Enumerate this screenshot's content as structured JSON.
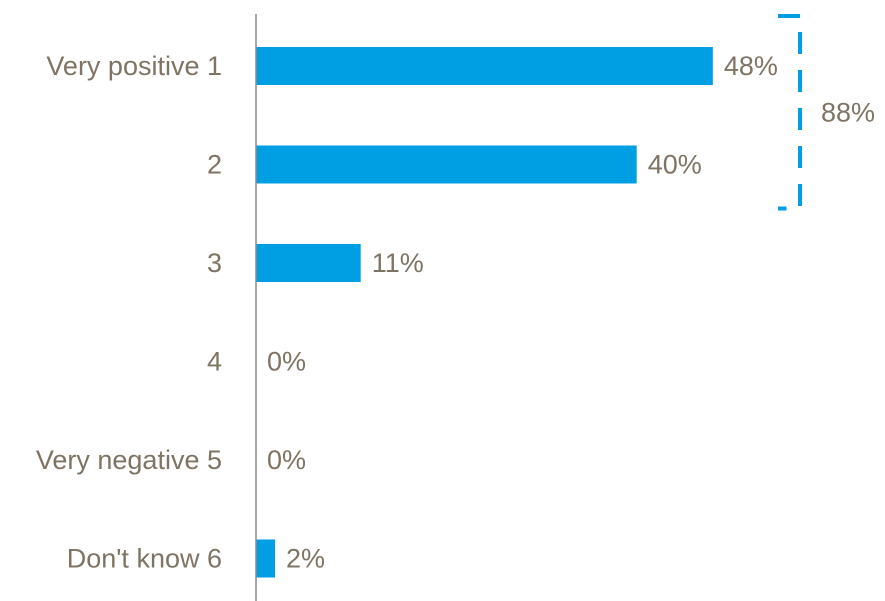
{
  "chart_data": {
    "type": "bar",
    "orientation": "horizontal",
    "categories": [
      "Very positive 1",
      "2",
      "3",
      "4",
      "Very negative 5",
      "Don't know 6"
    ],
    "values": [
      48,
      40,
      11,
      0,
      0,
      2
    ],
    "value_labels": [
      "48%",
      "40%",
      "11%",
      "0%",
      "0%",
      "2%"
    ],
    "xlim": [
      0,
      58
    ],
    "grid": false,
    "bracket": {
      "label": "88%",
      "categories": [
        "Very positive 1",
        "2"
      ]
    },
    "colors": {
      "bar": "#009fe3",
      "text": "#7f7363",
      "axis": "#8c8c8c",
      "bracket": "#009fe3"
    }
  }
}
